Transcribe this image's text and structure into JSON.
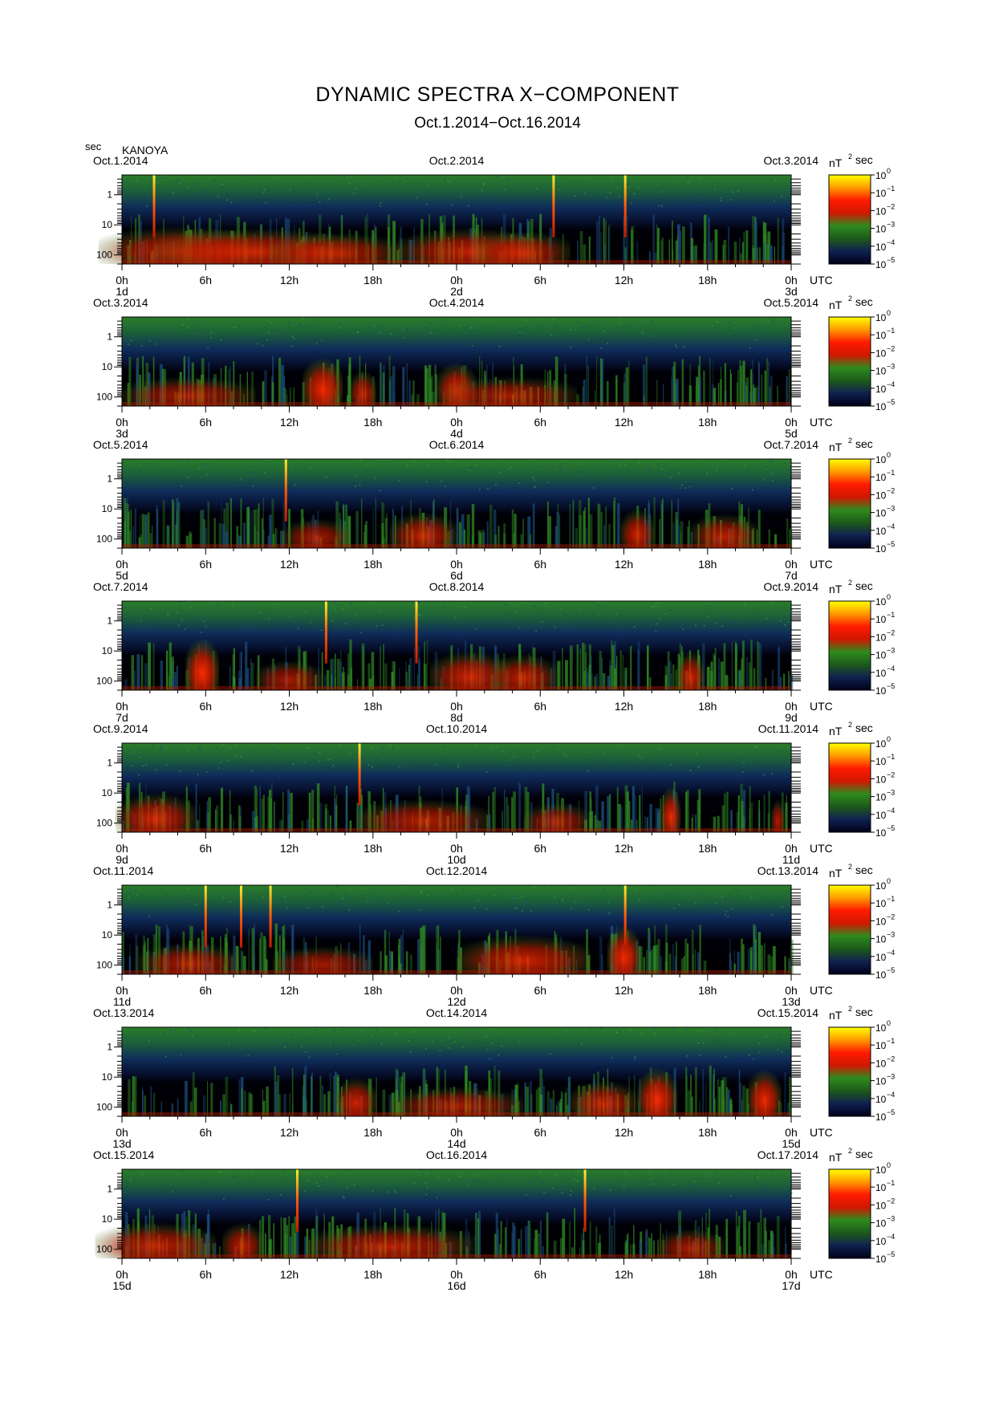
{
  "header": {
    "title": "DYNAMIC SPECTRA X−COMPONENT",
    "subtitle": "Oct.1.2014−Oct.16.2014",
    "y_unit": "sec",
    "station": "KANOYA",
    "utc_label": "UTC",
    "colorbar_unit_base": "nT",
    "colorbar_unit_exp": "2",
    "colorbar_unit_tail": "sec"
  },
  "chart_data": {
    "type": "heatmap",
    "title": "DYNAMIC SPECTRA X−COMPONENT",
    "subtitle": "Oct.1.2014−Oct.16.2014",
    "station": "KANOYA",
    "ylabel": "sec",
    "y_scale": "log",
    "y_inverted": true,
    "y_ticks": [
      "1",
      "10",
      "100"
    ],
    "x_ticks": [
      "0h",
      "6h",
      "12h",
      "18h",
      "0h",
      "6h",
      "12h",
      "18h",
      "0h"
    ],
    "colorbar": {
      "unit": "nT² sec",
      "scale": "log",
      "ticks": [
        {
          "base": "10",
          "exp": "0"
        },
        {
          "base": "10",
          "exp": "−1"
        },
        {
          "base": "10",
          "exp": "−2"
        },
        {
          "base": "10",
          "exp": "−3"
        },
        {
          "base": "10",
          "exp": "−4"
        },
        {
          "base": "10",
          "exp": "−5"
        }
      ],
      "colors": [
        "#ffff00",
        "#ff9900",
        "#ff1a00",
        "#d01800",
        "#2e8b1e",
        "#1d5a1a",
        "#102050",
        "#000018"
      ]
    },
    "panels": [
      {
        "left_date": "Oct.1.2014",
        "mid_date": "Oct.2.2014",
        "right_date": "Oct.3.2014",
        "day_labels": [
          "1d",
          "2d",
          "3d"
        ],
        "spikes": [
          0.048,
          0.645,
          0.752
        ],
        "bursts": [
          [
            0.09,
            0.25,
            0.55
          ],
          [
            0.2,
            0.3,
            0.5
          ],
          [
            0.32,
            0.2,
            0.35
          ],
          [
            0.52,
            0.22,
            0.5
          ],
          [
            0.6,
            0.14,
            0.4
          ]
        ]
      },
      {
        "left_date": "Oct.3.2014",
        "mid_date": "Oct.4.2014",
        "right_date": "Oct.5.2014",
        "day_labels": [
          "3d",
          "4d",
          "5d"
        ],
        "spikes": [],
        "bursts": [
          [
            0.3,
            0.06,
            0.9
          ],
          [
            0.5,
            0.06,
            0.75
          ],
          [
            0.36,
            0.04,
            0.5
          ],
          [
            0.58,
            0.2,
            0.3
          ],
          [
            0.1,
            0.2,
            0.3
          ]
        ]
      },
      {
        "left_date": "Oct.5.2014",
        "mid_date": "Oct.6.2014",
        "right_date": "Oct.7.2014",
        "day_labels": [
          "5d",
          "6d",
          "7d"
        ],
        "spikes": [
          0.245
        ],
        "bursts": [
          [
            0.45,
            0.1,
            0.5
          ],
          [
            0.77,
            0.05,
            0.6
          ],
          [
            0.29,
            0.1,
            0.3
          ],
          [
            0.9,
            0.1,
            0.45
          ]
        ]
      },
      {
        "left_date": "Oct.7.2014",
        "mid_date": "Oct.8.2014",
        "right_date": "Oct.9.2014",
        "day_labels": [
          "7d",
          "8d",
          "9d"
        ],
        "spikes": [
          0.305,
          0.44
        ],
        "bursts": [
          [
            0.12,
            0.05,
            1.0
          ],
          [
            0.52,
            0.12,
            0.6
          ],
          [
            0.6,
            0.1,
            0.5
          ],
          [
            0.85,
            0.04,
            0.6
          ],
          [
            0.25,
            0.1,
            0.3
          ]
        ]
      },
      {
        "left_date": "Oct.9.2014",
        "mid_date": "Oct.10.2014",
        "right_date": "Oct.11.2014",
        "day_labels": [
          "9d",
          "10d",
          "11d"
        ],
        "spikes": [
          0.355
        ],
        "bursts": [
          [
            0.05,
            0.12,
            0.6
          ],
          [
            0.82,
            0.03,
            0.8
          ],
          [
            0.45,
            0.2,
            0.4
          ],
          [
            0.65,
            0.1,
            0.3
          ],
          [
            0.98,
            0.02,
            0.4
          ]
        ]
      },
      {
        "left_date": "Oct.11.2014",
        "mid_date": "Oct.12.2014",
        "right_date": "Oct.13.2014",
        "day_labels": [
          "11d",
          "12d",
          "13d"
        ],
        "spikes": [
          0.125,
          0.178,
          0.222,
          0.752
        ],
        "bursts": [
          [
            0.6,
            0.2,
            0.6
          ],
          [
            0.75,
            0.05,
            0.9
          ],
          [
            0.1,
            0.15,
            0.35
          ],
          [
            0.3,
            0.15,
            0.25
          ]
        ]
      },
      {
        "left_date": "Oct.13.2014",
        "mid_date": "Oct.14.2014",
        "right_date": "Oct.15.2014",
        "day_labels": [
          "13d",
          "14d",
          "15d"
        ],
        "spikes": [],
        "bursts": [
          [
            0.35,
            0.06,
            0.6
          ],
          [
            0.8,
            0.06,
            0.9
          ],
          [
            0.96,
            0.05,
            0.85
          ],
          [
            0.5,
            0.2,
            0.3
          ],
          [
            0.72,
            0.1,
            0.5
          ]
        ]
      },
      {
        "left_date": "Oct.15.2014",
        "mid_date": "Oct.16.2014",
        "right_date": "Oct.17.2014",
        "day_labels": [
          "15d",
          "16d",
          "17d"
        ],
        "spikes": [
          0.262,
          0.692
        ],
        "bursts": [
          [
            0.05,
            0.18,
            0.5
          ],
          [
            0.18,
            0.06,
            0.5
          ],
          [
            0.4,
            0.25,
            0.45
          ],
          [
            0.85,
            0.1,
            0.3
          ]
        ]
      }
    ]
  }
}
